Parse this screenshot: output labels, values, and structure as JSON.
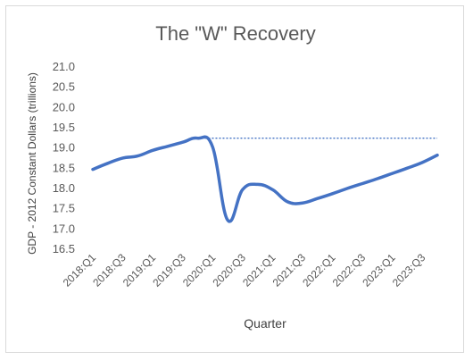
{
  "chart_data": {
    "type": "line",
    "title": "The \"W\" Recovery",
    "xlabel": "Quarter",
    "ylabel": "GDP - 2012 Constant Dollars (trillions)",
    "ylim": [
      16.5,
      21.0
    ],
    "yticks": [
      "21.0",
      "20.5",
      "20.0",
      "19.5",
      "19.0",
      "18.5",
      "18.0",
      "17.5",
      "17.0",
      "16.5"
    ],
    "x_tick_labels": [
      "2018:Q1",
      "2018:Q3",
      "2019:Q1",
      "2019:Q3",
      "2020:Q1",
      "2020:Q3",
      "2021:Q1",
      "2021:Q3",
      "2022:Q1",
      "2022:Q3",
      "2023:Q1",
      "2023:Q3"
    ],
    "categories": [
      "2018:Q1",
      "2018:Q2",
      "2018:Q3",
      "2018:Q4",
      "2019:Q1",
      "2019:Q2",
      "2019:Q3",
      "2019:Q4",
      "2020:Q1",
      "2020:Q2",
      "2020:Q3",
      "2020:Q4",
      "2021:Q1",
      "2021:Q2",
      "2021:Q3",
      "2021:Q4",
      "2022:Q1",
      "2022:Q2",
      "2022:Q3",
      "2022:Q4",
      "2023:Q1",
      "2023:Q2",
      "2023:Q3",
      "2023:Q4"
    ],
    "grid": false,
    "series": [
      {
        "values": [
          18.45,
          18.6,
          18.73,
          18.78,
          18.92,
          19.02,
          19.12,
          19.22,
          19.0,
          17.2,
          17.95,
          18.08,
          17.95,
          17.65,
          17.62,
          17.73,
          17.85,
          17.98,
          18.1,
          18.22,
          18.35,
          18.48,
          18.62,
          18.8
        ],
        "color": "#4472c4"
      }
    ],
    "reference_line": {
      "y": 19.22,
      "from": "2019:Q4",
      "to": "2023:Q4",
      "style": "dotted",
      "color": "#4472c4"
    }
  }
}
